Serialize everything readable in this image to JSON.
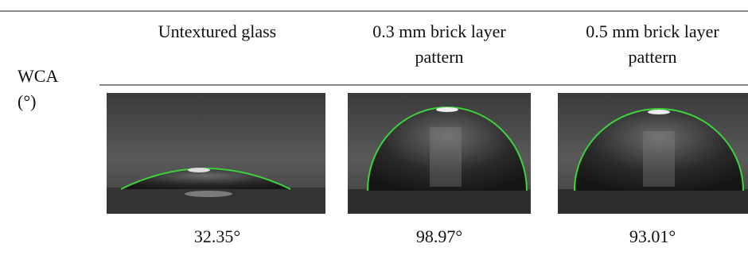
{
  "table": {
    "header": [
      "Untextured glass",
      [
        "0.3 mm brick layer",
        "pattern"
      ],
      [
        "0.5 mm brick layer",
        "pattern"
      ]
    ],
    "row_label": [
      "WCA",
      "(°)"
    ],
    "values": [
      "32.35°",
      "98.97°",
      "93.01°"
    ]
  }
}
